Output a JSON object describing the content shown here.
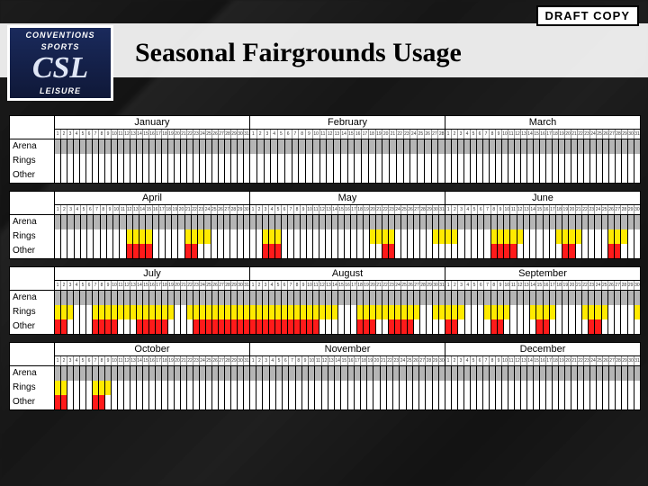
{
  "badge": "DRAFT COPY",
  "logo": {
    "top": "CONVENTIONS",
    "mid": "SPORTS",
    "main": "CSL",
    "bottom": "LEISURE"
  },
  "title": "Seasonal Fairgrounds Usage",
  "row_labels": [
    "Arena",
    "Rings",
    "Other"
  ],
  "colors": {
    "none": "#ffffff",
    "gray": "#b5b5b5",
    "yellow": "#ffea00",
    "red": "#ff1a1a",
    "black": "#000000"
  },
  "quarters": [
    {
      "months": [
        {
          "name": "January",
          "days": 31,
          "arena": "GGGGGGGGGGGGGGGGGGGGGGGGGGGGGGG",
          "rings": "-------------------------------",
          "other": "-------------------------------"
        },
        {
          "name": "February",
          "days": 28,
          "arena": "GGGGGGGGGGGGGGGGGGGGGGGGGGGG",
          "rings": "----------------------------",
          "other": "----------------------------"
        },
        {
          "name": "March",
          "days": 31,
          "arena": "GGGGGGGGGGGGGGGGGGGGGGGGGGGGGGG",
          "rings": "-------------------------------",
          "other": "-------------------------------"
        }
      ]
    },
    {
      "months": [
        {
          "name": "April",
          "days": 30,
          "arena": "GGGGGGGGGGGGGGGGGGGGGGGGGGGGGG",
          "rings": "-----------YYYY-----YYYY------",
          "other": "-----------RRRR-----RR--------"
        },
        {
          "name": "May",
          "days": 31,
          "arena": "GGGGGGGGGGGGGGGGGGGGGGGGGGGGGGG",
          "rings": "--YYY--------------YYYY------YY",
          "other": "--RRR----------------RR--------"
        },
        {
          "name": "June",
          "days": 30,
          "arena": "GGGGGGGGGGGGGGGGGGGGGGGGGGGGGG",
          "rings": "YY-----YYYYY-----YYYY----YYY--",
          "other": "-------RRRR-------RR-----RR---"
        }
      ]
    },
    {
      "months": [
        {
          "name": "July",
          "days": 31,
          "arena": "GGGGGGGGGGGGGGGGGGGGGGGGGGGGGGG",
          "rings": "YYY---YYYYYYYYYYYYY--YYYYYYYYYY",
          "other": "RR----RRRR---RRRRR----RRRRRRRRR"
        },
        {
          "name": "August",
          "days": 31,
          "arena": "GGGGGGGGGGGGGGGGGGGGGGGGGGGGGGG",
          "rings": "YYYYYYYYYYYYYY---YYYYYYYYYY--YY",
          "other": "RRRRRRRRRRR------RRR--RRRR-----"
        },
        {
          "name": "September",
          "days": 30,
          "arena": "GGGGGGGGGGGGGGGGGGGGGGGGGGGGGG",
          "rings": "YYY---YYYY---YYYY----YYYY----Y",
          "other": "RR-----RR-----RR------RR------"
        }
      ]
    },
    {
      "months": [
        {
          "name": "October",
          "days": 31,
          "arena": "GGGGGGGGGGGGGGGGGGGGGGGGGGGGGGG",
          "rings": "YY----YYY----------------------",
          "other": "RR----RR-----------------------"
        },
        {
          "name": "November",
          "days": 30,
          "arena": "GGGGGGGGGGGGGGGGGGGGGGGGGGGGGG",
          "rings": "------------------------------",
          "other": "------------------------------"
        },
        {
          "name": "December",
          "days": 31,
          "arena": "GGGGGGGGGGGGGGGGGGGGGGGGGGGGGGG",
          "rings": "-------------------------------",
          "other": "-------------------------------"
        }
      ]
    }
  ]
}
